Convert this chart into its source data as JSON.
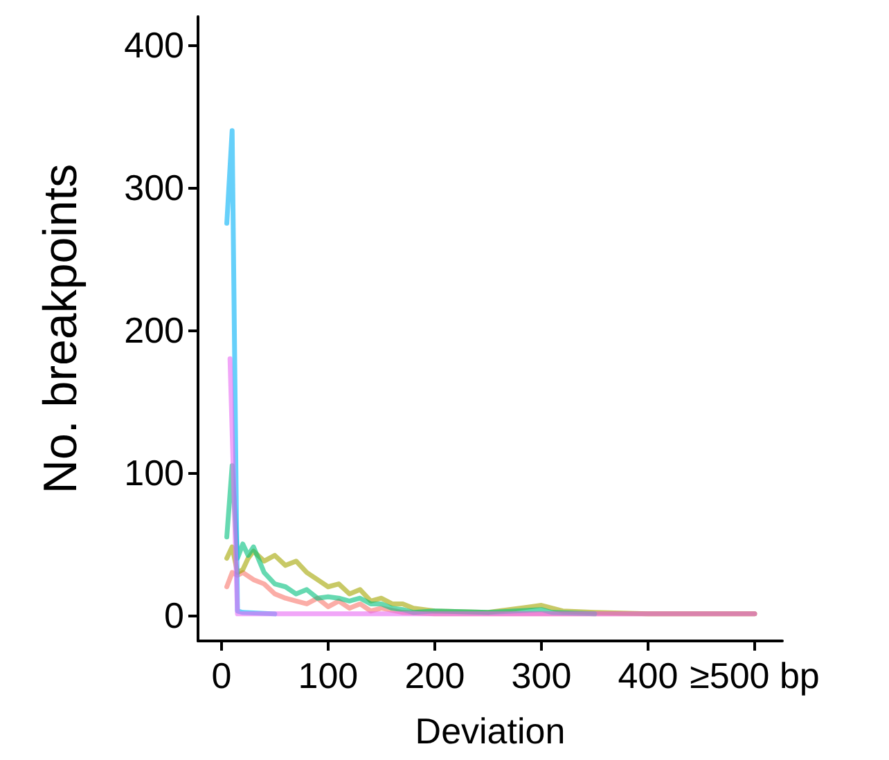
{
  "chart_data": {
    "type": "line",
    "xlabel": "Deviation",
    "ylabel": "No. breakpoints",
    "xlim": [
      -22,
      526
    ],
    "xticks": [
      0,
      100,
      200,
      300,
      400,
      {
        "value": 500,
        "label": "≥500 bp"
      }
    ],
    "ylim": [
      -18,
      420
    ],
    "yticks": [
      0,
      100,
      200,
      300,
      400
    ],
    "grid": false,
    "marker": "none",
    "line_style": "solid",
    "series": [
      {
        "color": "#f8766d",
        "x": [
          5,
          10,
          15,
          20,
          30,
          40,
          50,
          60,
          70,
          80,
          90,
          100,
          110,
          120,
          130,
          140,
          150,
          170,
          200,
          250,
          300,
          400,
          500
        ],
        "values": [
          20,
          30,
          28,
          30,
          25,
          22,
          15,
          12,
          10,
          8,
          12,
          6,
          10,
          5,
          8,
          3,
          5,
          2,
          1,
          1,
          1,
          1,
          1
        ]
      },
      {
        "color": "#a3a500",
        "x": [
          5,
          10,
          15,
          20,
          25,
          30,
          40,
          50,
          60,
          70,
          80,
          90,
          100,
          110,
          120,
          130,
          140,
          150,
          160,
          170,
          180,
          200,
          250,
          300,
          320,
          350,
          400,
          500
        ],
        "values": [
          40,
          48,
          30,
          32,
          40,
          45,
          38,
          42,
          35,
          38,
          30,
          25,
          20,
          22,
          15,
          18,
          10,
          12,
          8,
          8,
          5,
          3,
          2,
          7,
          3,
          2,
          1,
          1
        ]
      },
      {
        "color": "#00bf7d",
        "x": [
          5,
          10,
          15,
          20,
          25,
          30,
          40,
          50,
          60,
          70,
          80,
          90,
          100,
          110,
          120,
          130,
          140,
          150,
          160,
          170,
          180,
          200,
          250,
          300,
          310,
          350
        ],
        "values": [
          55,
          105,
          40,
          50,
          42,
          48,
          30,
          22,
          20,
          15,
          18,
          12,
          13,
          12,
          10,
          12,
          8,
          8,
          5,
          4,
          2,
          3,
          2,
          4,
          2,
          1
        ]
      },
      {
        "color": "#00b0f6",
        "x": [
          5,
          10,
          15,
          20,
          50
        ],
        "values": [
          275,
          340,
          3,
          2,
          1
        ]
      },
      {
        "color": "#e76bf3",
        "x": [
          8,
          15,
          500
        ],
        "values": [
          180,
          1,
          1
        ]
      }
    ]
  }
}
